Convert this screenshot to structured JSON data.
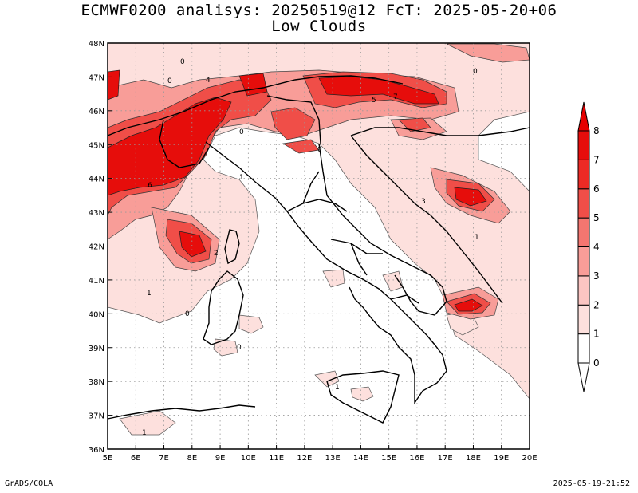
{
  "title_line1": "ECMWF0200 analisys: 20250519@12 FcT: 2025-05-20+06",
  "title_line2": "Low Clouds",
  "footer_left": "GrADS/COLA",
  "footer_right": "2025-05-19-21:52",
  "map": {
    "lon_labels": [
      "5E",
      "6E",
      "7E",
      "8E",
      "9E",
      "10E",
      "11E",
      "12E",
      "13E",
      "14E",
      "15E",
      "16E",
      "17E",
      "18E",
      "19E",
      "20E"
    ],
    "lat_labels": [
      "48N",
      "47N",
      "46N",
      "45N",
      "44N",
      "43N",
      "42N",
      "41N",
      "40N",
      "39N",
      "38N",
      "37N",
      "36N"
    ],
    "lon_range": [
      5,
      20
    ],
    "lat_range": [
      36,
      48
    ],
    "grid": "dotted",
    "contour_labels": [
      "0",
      "1",
      "2",
      "3",
      "4",
      "5",
      "6",
      "7"
    ]
  },
  "colorbar": {
    "labels": [
      "0",
      "1",
      "2",
      "3",
      "4",
      "5",
      "6",
      "7",
      "8"
    ],
    "colors": [
      "#ffffff",
      "#fde0dd",
      "#fbc5c2",
      "#f89d98",
      "#f47670",
      "#f04e48",
      "#ec2a25",
      "#e60d0b"
    ],
    "arrow_top_color": "#e60000",
    "arrow_bottom_color": "#ffffff"
  }
}
